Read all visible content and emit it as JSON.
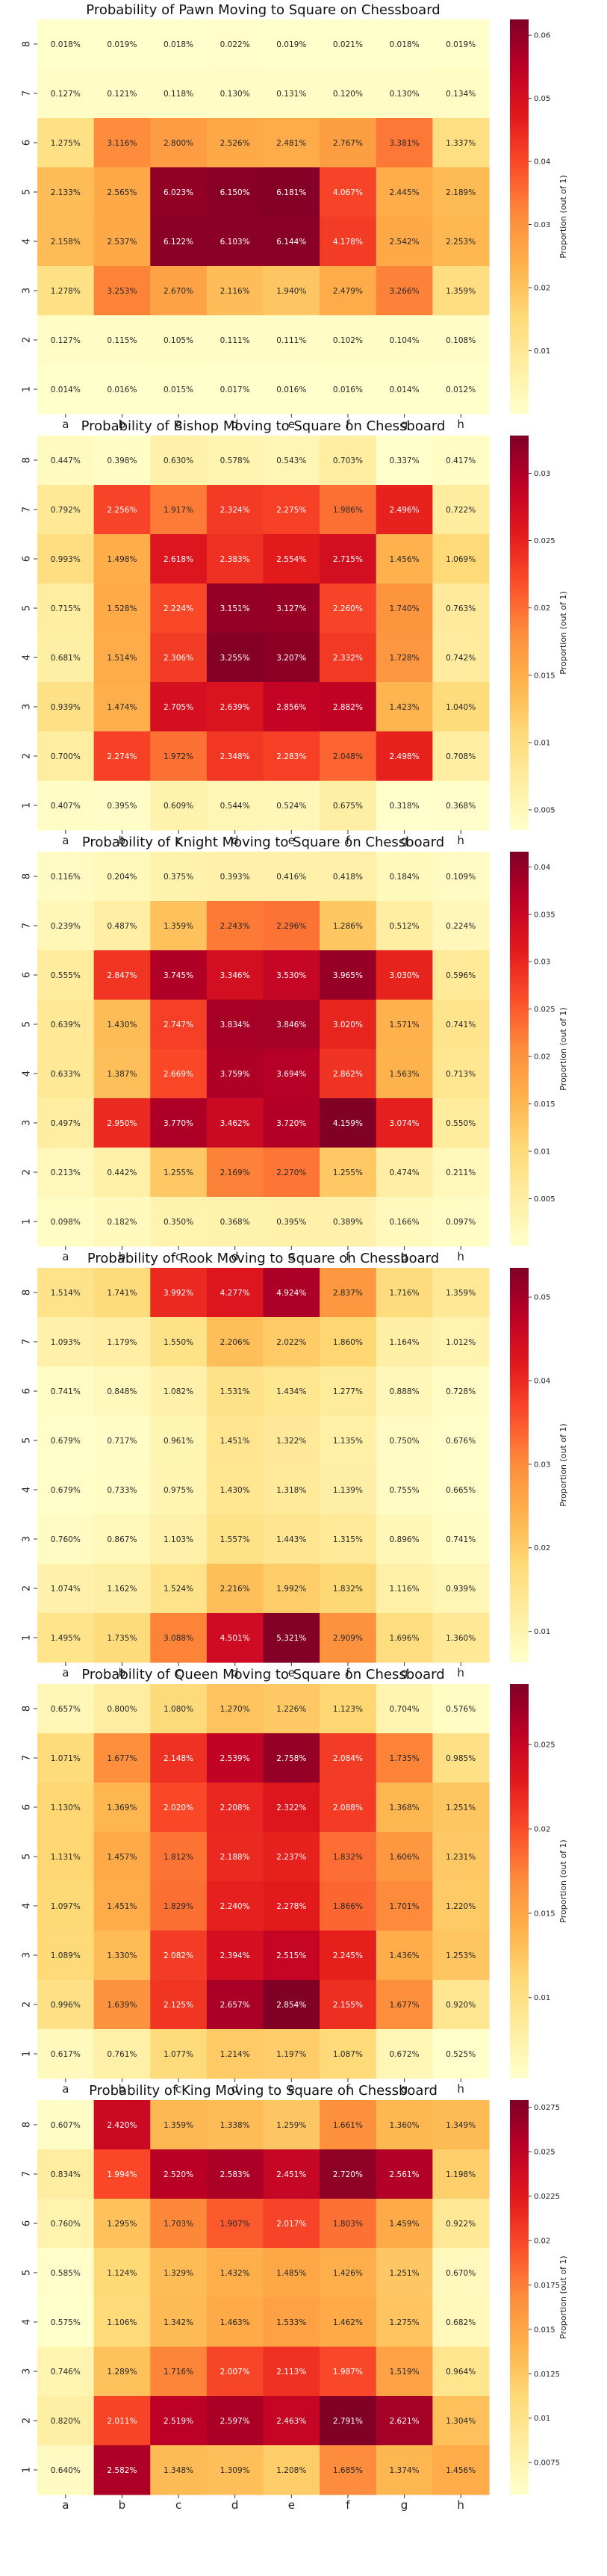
{
  "chart_data": [
    {
      "type": "heatmap",
      "title": "Probability of Pawn Moving to Square on Chessboard",
      "xlabels": [
        "a",
        "b",
        "c",
        "d",
        "e",
        "f",
        "g",
        "h"
      ],
      "ylabels": [
        "8",
        "7",
        "6",
        "5",
        "4",
        "3",
        "2",
        "1"
      ],
      "colorbar_label": "Proportion (out of 1)",
      "colorbar_ticks": [
        0.01,
        0.02,
        0.03,
        0.04,
        0.05,
        0.06
      ],
      "vmin": 0.0,
      "vmax": 0.0625,
      "values": [
        [
          0.018,
          0.019,
          0.018,
          0.022,
          0.019,
          0.021,
          0.018,
          0.019
        ],
        [
          0.127,
          0.121,
          0.118,
          0.13,
          0.131,
          0.12,
          0.13,
          0.134
        ],
        [
          1.275,
          3.116,
          2.8,
          2.526,
          2.481,
          2.767,
          3.381,
          1.337
        ],
        [
          2.133,
          2.565,
          6.023,
          6.15,
          6.181,
          4.067,
          2.445,
          2.189
        ],
        [
          2.158,
          2.537,
          6.122,
          6.103,
          6.144,
          4.178,
          2.542,
          2.253
        ],
        [
          1.278,
          3.253,
          2.67,
          2.116,
          1.94,
          2.479,
          3.266,
          1.359
        ],
        [
          0.127,
          0.115,
          0.105,
          0.111,
          0.111,
          0.102,
          0.104,
          0.108
        ],
        [
          0.014,
          0.016,
          0.015,
          0.017,
          0.016,
          0.016,
          0.014,
          0.012
        ]
      ]
    },
    {
      "type": "heatmap",
      "title": "Probability of Bishop Moving to Square on Chessboard",
      "xlabels": [
        "a",
        "b",
        "c",
        "d",
        "e",
        "f",
        "g",
        "h"
      ],
      "ylabels": [
        "8",
        "7",
        "6",
        "5",
        "4",
        "3",
        "2",
        "1"
      ],
      "colorbar_label": "Proportion (out of 1)",
      "colorbar_ticks": [
        0.005,
        0.01,
        0.015,
        0.02,
        0.025,
        0.03
      ],
      "vmin": 0.0035,
      "vmax": 0.0328,
      "values": [
        [
          0.447,
          0.398,
          0.63,
          0.578,
          0.543,
          0.703,
          0.337,
          0.417
        ],
        [
          0.792,
          2.256,
          1.917,
          2.324,
          2.275,
          1.986,
          2.496,
          0.722
        ],
        [
          0.993,
          1.498,
          2.618,
          2.383,
          2.554,
          2.715,
          1.456,
          1.069
        ],
        [
          0.715,
          1.528,
          2.224,
          3.151,
          3.127,
          2.26,
          1.74,
          0.763
        ],
        [
          0.681,
          1.514,
          2.306,
          3.255,
          3.207,
          2.332,
          1.728,
          0.742
        ],
        [
          0.939,
          1.474,
          2.705,
          2.639,
          2.856,
          2.882,
          1.423,
          1.04
        ],
        [
          0.7,
          2.274,
          1.972,
          2.348,
          2.283,
          2.048,
          2.498,
          0.708
        ],
        [
          0.407,
          0.395,
          0.609,
          0.544,
          0.524,
          0.675,
          0.318,
          0.368
        ]
      ]
    },
    {
      "type": "heatmap",
      "title": "Probability of Knight Moving to Square on Chessboard",
      "xlabels": [
        "a",
        "b",
        "c",
        "d",
        "e",
        "f",
        "g",
        "h"
      ],
      "ylabels": [
        "8",
        "7",
        "6",
        "5",
        "4",
        "3",
        "2",
        "1"
      ],
      "colorbar_label": "Proportion (out of 1)",
      "colorbar_ticks": [
        0.005,
        0.01,
        0.015,
        0.02,
        0.025,
        0.03,
        0.035,
        0.04
      ],
      "vmin": 0.0,
      "vmax": 0.0416,
      "values": [
        [
          0.116,
          0.204,
          0.375,
          0.393,
          0.416,
          0.418,
          0.184,
          0.109
        ],
        [
          0.239,
          0.487,
          1.359,
          2.243,
          2.296,
          1.286,
          0.512,
          0.224
        ],
        [
          0.555,
          2.847,
          3.745,
          3.346,
          3.53,
          3.965,
          3.03,
          0.596
        ],
        [
          0.639,
          1.43,
          2.747,
          3.834,
          3.846,
          3.02,
          1.571,
          0.741
        ],
        [
          0.633,
          1.387,
          2.669,
          3.759,
          3.694,
          2.862,
          1.563,
          0.713
        ],
        [
          0.497,
          2.95,
          3.77,
          3.462,
          3.72,
          4.159,
          3.074,
          0.55
        ],
        [
          0.213,
          0.442,
          1.255,
          2.169,
          2.27,
          1.255,
          0.474,
          0.211
        ],
        [
          0.098,
          0.182,
          0.35,
          0.368,
          0.395,
          0.389,
          0.166,
          0.097
        ]
      ]
    },
    {
      "type": "heatmap",
      "title": "Probability of Rook Moving to Square on Chessboard",
      "xlabels": [
        "a",
        "b",
        "c",
        "d",
        "e",
        "f",
        "g",
        "h"
      ],
      "ylabels": [
        "8",
        "7",
        "6",
        "5",
        "4",
        "3",
        "2",
        "1"
      ],
      "colorbar_label": "Proportion (out of 1)",
      "colorbar_ticks": [
        0.01,
        0.02,
        0.03,
        0.04,
        0.05
      ],
      "vmin": 0.0063,
      "vmax": 0.0535,
      "values": [
        [
          1.514,
          1.741,
          3.992,
          4.277,
          4.924,
          2.837,
          1.716,
          1.359
        ],
        [
          1.093,
          1.179,
          1.55,
          2.206,
          2.022,
          1.86,
          1.164,
          1.012
        ],
        [
          0.741,
          0.848,
          1.082,
          1.531,
          1.434,
          1.277,
          0.888,
          0.728
        ],
        [
          0.679,
          0.717,
          0.961,
          1.451,
          1.322,
          1.135,
          0.75,
          0.676
        ],
        [
          0.679,
          0.733,
          0.975,
          1.43,
          1.318,
          1.139,
          0.755,
          0.665
        ],
        [
          0.76,
          0.867,
          1.103,
          1.557,
          1.443,
          1.315,
          0.896,
          0.741
        ],
        [
          1.074,
          1.162,
          1.524,
          2.216,
          1.992,
          1.832,
          1.116,
          0.939
        ],
        [
          1.495,
          1.735,
          3.088,
          4.501,
          5.321,
          2.909,
          1.696,
          1.36
        ]
      ]
    },
    {
      "type": "heatmap",
      "title": "Probability of Queen Moving to Square on Chessboard",
      "xlabels": [
        "a",
        "b",
        "c",
        "d",
        "e",
        "f",
        "g",
        "h"
      ],
      "ylabels": [
        "8",
        "7",
        "6",
        "5",
        "4",
        "3",
        "2",
        "1"
      ],
      "colorbar_label": "Proportion (out of 1)",
      "colorbar_ticks": [
        0.01,
        0.015,
        0.02,
        0.025
      ],
      "vmin": 0.0052,
      "vmax": 0.0286,
      "values": [
        [
          0.657,
          0.8,
          1.08,
          1.27,
          1.226,
          1.123,
          0.704,
          0.576
        ],
        [
          1.071,
          1.677,
          2.148,
          2.539,
          2.758,
          2.084,
          1.735,
          0.985
        ],
        [
          1.13,
          1.369,
          2.02,
          2.208,
          2.322,
          2.088,
          1.368,
          1.251
        ],
        [
          1.131,
          1.457,
          1.812,
          2.188,
          2.237,
          1.832,
          1.606,
          1.231
        ],
        [
          1.097,
          1.451,
          1.829,
          2.24,
          2.278,
          1.866,
          1.701,
          1.22
        ],
        [
          1.089,
          1.33,
          2.082,
          2.394,
          2.515,
          2.245,
          1.436,
          1.253
        ],
        [
          0.996,
          1.639,
          2.125,
          2.657,
          2.854,
          2.155,
          1.677,
          0.92
        ],
        [
          0.617,
          0.761,
          1.077,
          1.214,
          1.197,
          1.087,
          0.672,
          0.525
        ]
      ]
    },
    {
      "type": "heatmap",
      "title": "Probability of King Moving to Square on Chessboard",
      "xlabels": [
        "a",
        "b",
        "c",
        "d",
        "e",
        "f",
        "g",
        "h"
      ],
      "ylabels": [
        "8",
        "7",
        "6",
        "5",
        "4",
        "3",
        "2",
        "1"
      ],
      "colorbar_label": "Proportion (out of 1)",
      "colorbar_ticks": [
        0.0075,
        0.01,
        0.0125,
        0.015,
        0.0175,
        0.02,
        0.0225,
        0.025,
        0.0275
      ],
      "vmin": 0.0057,
      "vmax": 0.0279,
      "values": [
        [
          0.607,
          2.42,
          1.359,
          1.338,
          1.259,
          1.661,
          1.36,
          1.349
        ],
        [
          0.834,
          1.994,
          2.52,
          2.583,
          2.451,
          2.72,
          2.561,
          1.198
        ],
        [
          0.76,
          1.295,
          1.703,
          1.907,
          2.017,
          1.803,
          1.459,
          0.922
        ],
        [
          0.585,
          1.124,
          1.329,
          1.432,
          1.485,
          1.426,
          1.251,
          0.67
        ],
        [
          0.575,
          1.106,
          1.342,
          1.463,
          1.533,
          1.462,
          1.275,
          0.682
        ],
        [
          0.746,
          1.289,
          1.716,
          2.007,
          2.113,
          1.987,
          1.519,
          0.964
        ],
        [
          0.82,
          2.011,
          2.519,
          2.597,
          2.463,
          2.791,
          2.621,
          1.304
        ],
        [
          0.64,
          2.582,
          1.348,
          1.309,
          1.208,
          1.685,
          1.374,
          1.456
        ]
      ]
    }
  ]
}
